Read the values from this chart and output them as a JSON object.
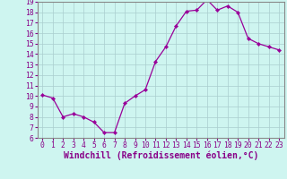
{
  "x": [
    0,
    1,
    2,
    3,
    4,
    5,
    6,
    7,
    8,
    9,
    10,
    11,
    12,
    13,
    14,
    15,
    16,
    17,
    18,
    19,
    20,
    21,
    22,
    23
  ],
  "y": [
    10.1,
    9.8,
    8.0,
    8.3,
    8.0,
    7.5,
    6.5,
    6.5,
    9.3,
    10.0,
    10.6,
    13.3,
    14.7,
    16.7,
    18.1,
    18.2,
    19.2,
    18.2,
    18.6,
    18.0,
    15.5,
    15.0,
    14.7,
    14.4
  ],
  "line_color": "#990099",
  "marker": "D",
  "marker_size": 2.2,
  "bg_color": "#cef5f0",
  "grid_color": "#aacece",
  "xlabel": "Windchill (Refroidissement éolien,°C)",
  "ylim": [
    6,
    19
  ],
  "xlim": [
    -0.5,
    23.5
  ],
  "yticks": [
    6,
    7,
    8,
    9,
    10,
    11,
    12,
    13,
    14,
    15,
    16,
    17,
    18,
    19
  ],
  "xticks": [
    0,
    1,
    2,
    3,
    4,
    5,
    6,
    7,
    8,
    9,
    10,
    11,
    12,
    13,
    14,
    15,
    16,
    17,
    18,
    19,
    20,
    21,
    22,
    23
  ],
  "tick_color": "#880088",
  "tick_fontsize": 5.8,
  "xlabel_fontsize": 7.0,
  "axis_color": "#880088",
  "spine_color": "#888888"
}
